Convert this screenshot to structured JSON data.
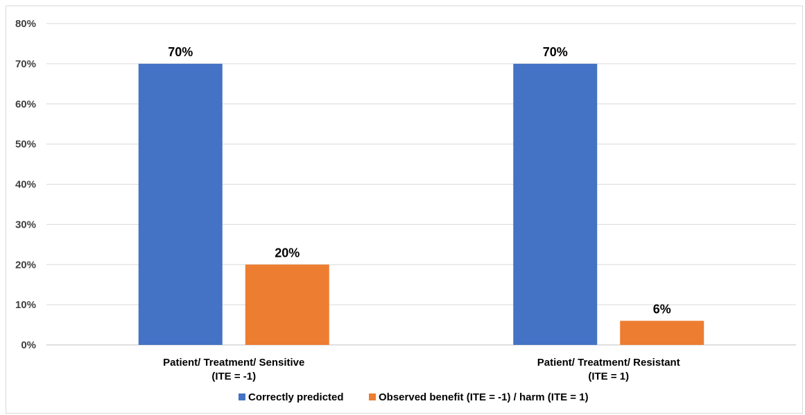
{
  "chart_data": {
    "type": "bar",
    "categories": [
      [
        "Patient/ Treatment/ Sensitive",
        "(ITE = -1)"
      ],
      [
        "Patient/ Treatment/ Resistant",
        "(ITE = 1)"
      ]
    ],
    "series": [
      {
        "name": "Correctly predicted",
        "values": [
          70,
          70
        ],
        "labels": [
          "70%",
          "70%"
        ],
        "color": "#4472C4"
      },
      {
        "name": "Observed benefit (ITE = -1) / harm (ITE = 1)",
        "values": [
          20,
          6
        ],
        "labels": [
          "20%",
          "6%"
        ],
        "color": "#ED7D31"
      }
    ],
    "ylim": [
      0,
      80
    ],
    "yticks": [
      0,
      10,
      20,
      30,
      40,
      50,
      60,
      70,
      80
    ],
    "ytick_labels": [
      "0%",
      "10%",
      "20%",
      "30%",
      "40%",
      "50%",
      "60%",
      "70%",
      "80%"
    ],
    "grid": true,
    "gridline_color": "#d9d9d9",
    "legend_position": "bottom",
    "title": "",
    "xlabel": "",
    "ylabel": ""
  }
}
